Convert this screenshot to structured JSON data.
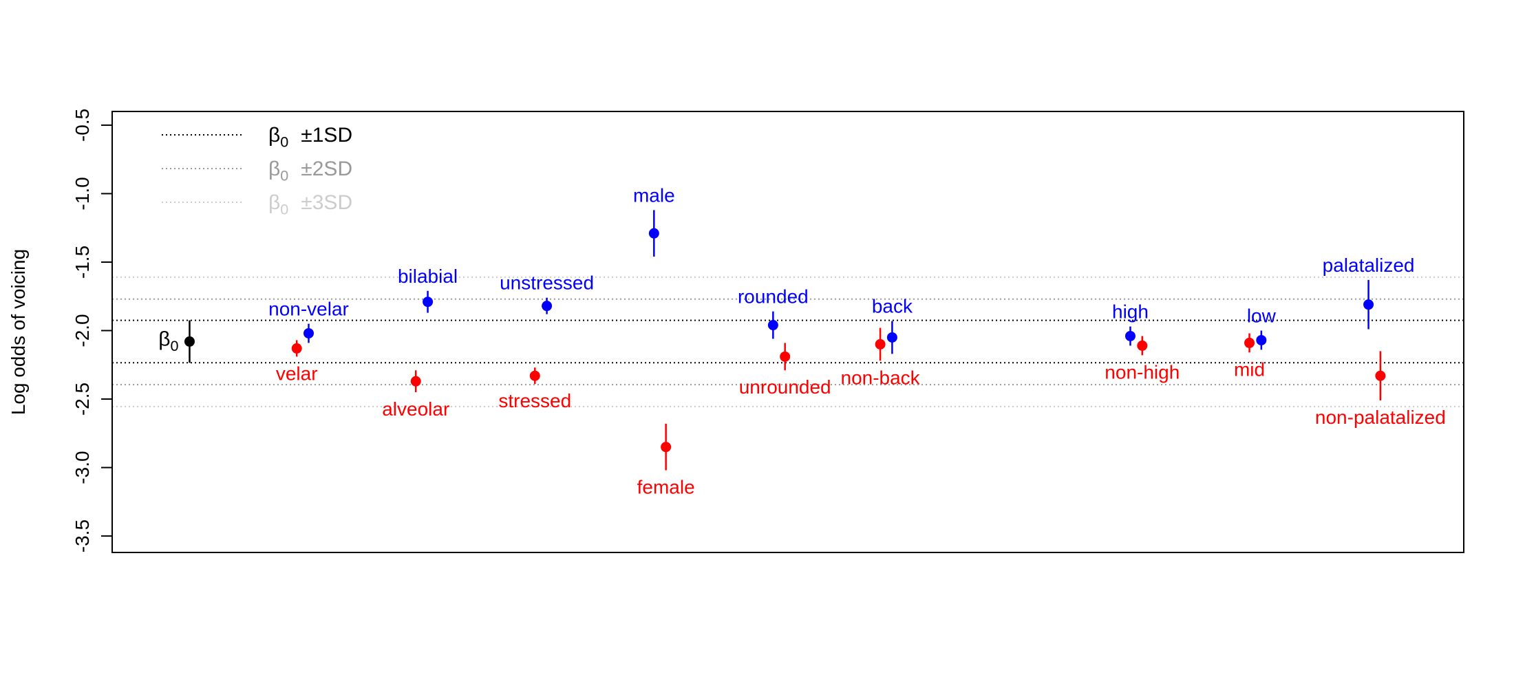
{
  "chart_data": {
    "type": "scatter",
    "ylabel": "Log odds of voicing",
    "ylim": [
      -3.62,
      -0.4
    ],
    "yticks": [
      -0.5,
      -1.0,
      -1.5,
      -2.0,
      -2.5,
      -3.0,
      -3.5
    ],
    "ytick_labels": [
      "-0.5",
      "-1.0",
      "-1.5",
      "-2.0",
      "-2.5",
      "-3.0",
      "-3.5"
    ],
    "grid": false,
    "reference_lines": {
      "sd1": [
        -1.925,
        -2.235
      ],
      "sd2": [
        -1.77,
        -2.395
      ],
      "sd3": [
        -1.61,
        -2.555
      ]
    },
    "legend": {
      "placement": "top-left",
      "entries": [
        {
          "symbol": "β",
          "subscript": "0",
          "label": "±1SD",
          "color": "#000000"
        },
        {
          "symbol": "β",
          "subscript": "0",
          "label": "±2SD",
          "color": "#999999"
        },
        {
          "symbol": "β",
          "subscript": "0",
          "label": "±3SD",
          "color": "#cccccc"
        }
      ]
    },
    "colors": {
      "baseline": "#000000",
      "blue": "#0000ff",
      "red": "#ff0000"
    },
    "baseline": {
      "symbol": "β",
      "subscript": "0",
      "x": 0,
      "y": -2.08,
      "lo": -2.235,
      "hi": -1.925
    },
    "points": [
      {
        "label": "velar",
        "series": "red",
        "x": 0.9,
        "y": -2.13,
        "lo": -2.19,
        "hi": -2.07,
        "label_pos": "below"
      },
      {
        "label": "non-velar",
        "series": "blue",
        "x": 1.0,
        "y": -2.02,
        "lo": -2.09,
        "hi": -1.95,
        "label_pos": "above"
      },
      {
        "label": "alveolar",
        "series": "red",
        "x": 1.9,
        "y": -2.37,
        "lo": -2.45,
        "hi": -2.29,
        "label_pos": "below"
      },
      {
        "label": "bilabial",
        "series": "blue",
        "x": 2.0,
        "y": -1.79,
        "lo": -1.87,
        "hi": -1.71,
        "label_pos": "above"
      },
      {
        "label": "stressed",
        "series": "red",
        "x": 2.9,
        "y": -2.33,
        "lo": -2.39,
        "hi": -2.27,
        "label_pos": "below"
      },
      {
        "label": "unstressed",
        "series": "blue",
        "x": 3.0,
        "y": -1.82,
        "lo": -1.88,
        "hi": -1.76,
        "label_pos": "above"
      },
      {
        "label": "male",
        "series": "blue",
        "x": 3.9,
        "y": -1.29,
        "lo": -1.46,
        "hi": -1.12,
        "label_pos": "above"
      },
      {
        "label": "female",
        "series": "red",
        "x": 4.0,
        "y": -2.85,
        "lo": -3.02,
        "hi": -2.68,
        "label_pos": "below"
      },
      {
        "label": "rounded",
        "series": "blue",
        "x": 4.9,
        "y": -1.96,
        "lo": -2.06,
        "hi": -1.86,
        "label_pos": "above"
      },
      {
        "label": "unrounded",
        "series": "red",
        "x": 5.0,
        "y": -2.19,
        "lo": -2.29,
        "hi": -2.09,
        "label_pos": "below"
      },
      {
        "label": "non-back",
        "series": "red",
        "x": 5.8,
        "y": -2.1,
        "lo": -2.22,
        "hi": -1.98,
        "label_pos": "below"
      },
      {
        "label": "back",
        "series": "blue",
        "x": 5.9,
        "y": -2.05,
        "lo": -2.17,
        "hi": -1.93,
        "label_pos": "above"
      },
      {
        "label": "high",
        "series": "blue",
        "x": 7.9,
        "y": -2.04,
        "lo": -2.11,
        "hi": -1.97,
        "label_pos": "above"
      },
      {
        "label": "non-high",
        "series": "red",
        "x": 8.0,
        "y": -2.11,
        "lo": -2.18,
        "hi": -2.04,
        "label_pos": "below"
      },
      {
        "label": "mid",
        "series": "red",
        "x": 8.9,
        "y": -2.09,
        "lo": -2.16,
        "hi": -2.02,
        "label_pos": "below"
      },
      {
        "label": "low",
        "series": "blue",
        "x": 9.0,
        "y": -2.07,
        "lo": -2.14,
        "hi": -2.0,
        "label_pos": "above"
      },
      {
        "label": "palatalized",
        "series": "blue",
        "x": 9.9,
        "y": -1.81,
        "lo": -1.99,
        "hi": -1.63,
        "label_pos": "above"
      },
      {
        "label": "non-palatalized",
        "series": "red",
        "x": 10.0,
        "y": -2.33,
        "lo": -2.51,
        "hi": -2.15,
        "label_pos": "below"
      }
    ]
  }
}
